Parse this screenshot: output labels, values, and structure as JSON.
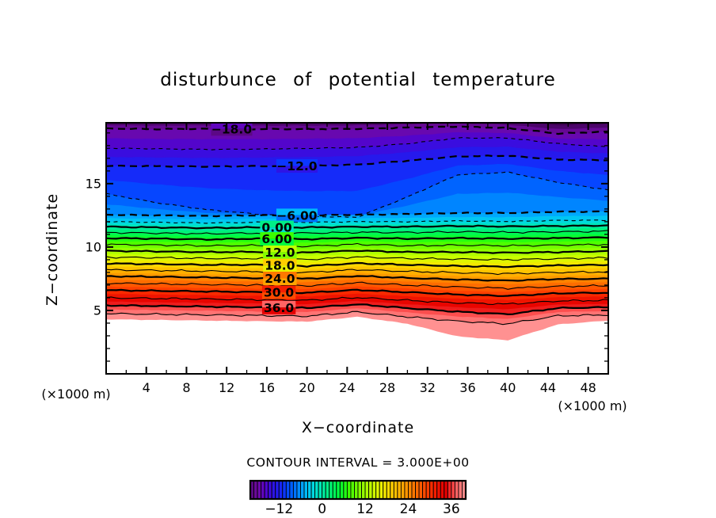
{
  "chart_data": {
    "type": "contour",
    "title": "disturbunce of potential temperature",
    "xlabel": "X−coordinate",
    "ylabel": "Z−coordinate",
    "x_unit_left": "(×1000 m)",
    "x_unit_right": "(×1000 m)",
    "contour_interval_label": "CONTOUR INTERVAL = 3.000E+00",
    "contour_interval": 3.0,
    "grid": false,
    "x_range": [
      0,
      50
    ],
    "z_range": [
      0,
      19.8
    ],
    "x_major_ticks": [
      4,
      8,
      12,
      16,
      20,
      24,
      28,
      32,
      36,
      40,
      44,
      48
    ],
    "x_minor_step": 2,
    "z_major_ticks": [
      5,
      10,
      15
    ],
    "z_minor_step": 1,
    "x_points": [
      0,
      5,
      10,
      15,
      20,
      25,
      30,
      35,
      40,
      45,
      50
    ],
    "fill_step": 1.5,
    "contour_levels": [
      {
        "value": -21,
        "line": false,
        "z": [
          19.88,
          19.85,
          19.87,
          19.85,
          19.85,
          19.87,
          19.95,
          20.0,
          19.9,
          19.6,
          19.7
        ]
      },
      {
        "value": -19.5,
        "line": false,
        "z": [
          19.62,
          19.58,
          19.6,
          19.58,
          19.58,
          19.6,
          19.68,
          19.75,
          19.65,
          19.3,
          19.42
        ]
      },
      {
        "value": -18,
        "line": true,
        "style": "dashed",
        "thick": true,
        "label": "−18.0",
        "label_x": 12.5,
        "z": [
          19.35,
          19.3,
          19.32,
          19.3,
          19.3,
          19.32,
          19.42,
          19.5,
          19.38,
          18.95,
          19.1
        ]
      },
      {
        "value": -15,
        "line": true,
        "style": "dashed",
        "thick": false,
        "label": null,
        "label_x": null,
        "z": [
          17.8,
          17.75,
          17.7,
          17.72,
          17.78,
          17.85,
          18.15,
          18.6,
          18.6,
          18.15,
          17.9
        ]
      },
      {
        "value": -12,
        "line": true,
        "style": "dashed",
        "thick": true,
        "label": "−12.0",
        "label_x": 19.0,
        "z": [
          16.4,
          16.38,
          16.35,
          16.38,
          16.4,
          16.5,
          16.8,
          17.15,
          17.2,
          16.9,
          16.85
        ]
      },
      {
        "value": -9,
        "line": true,
        "style": "dashed",
        "thick": false,
        "label": null,
        "label_x": null,
        "z": [
          14.2,
          13.5,
          12.95,
          12.6,
          12.42,
          12.35,
          13.95,
          15.7,
          15.9,
          15.1,
          14.5
        ]
      },
      {
        "value": -6,
        "line": true,
        "style": "dashed",
        "thick": true,
        "label": "−6.00",
        "label_x": 19.0,
        "z": [
          12.55,
          12.5,
          12.45,
          12.5,
          12.5,
          12.55,
          12.6,
          12.68,
          12.68,
          12.78,
          12.8
        ]
      },
      {
        "value": -3,
        "line": true,
        "style": "dashed",
        "thick": false,
        "label": null,
        "label_x": null,
        "z": [
          12.0,
          11.95,
          11.9,
          11.95,
          11.95,
          12.0,
          12.0,
          12.06,
          12.02,
          12.1,
          12.12
        ]
      },
      {
        "value": 0,
        "line": true,
        "style": "solid",
        "thick": true,
        "label": "0.00",
        "label_x": 17.0,
        "z": [
          11.6,
          11.55,
          11.5,
          11.55,
          11.55,
          11.6,
          11.6,
          11.66,
          11.62,
          11.66,
          11.7
        ]
      },
      {
        "value": 3,
        "line": true,
        "style": "solid",
        "thick": false,
        "label": null,
        "label_x": null,
        "z": [
          11.15,
          11.1,
          11.05,
          11.1,
          11.1,
          11.16,
          11.15,
          11.2,
          11.16,
          11.2,
          11.25
        ]
      },
      {
        "value": 6,
        "line": true,
        "style": "solid",
        "thick": true,
        "label": "6.00",
        "label_x": 17.0,
        "z": [
          10.7,
          10.66,
          10.6,
          10.66,
          10.62,
          10.72,
          10.66,
          10.7,
          10.66,
          10.7,
          10.76
        ]
      },
      {
        "value": 9,
        "line": true,
        "style": "solid",
        "thick": false,
        "label": null,
        "label_x": null,
        "z": [
          10.2,
          10.16,
          10.1,
          10.12,
          10.06,
          10.22,
          10.1,
          10.15,
          10.1,
          10.15,
          10.2
        ]
      },
      {
        "value": 12,
        "line": true,
        "style": "solid",
        "thick": true,
        "label": "12.0",
        "label_x": 17.3,
        "z": [
          9.7,
          9.66,
          9.6,
          9.62,
          9.56,
          9.72,
          9.6,
          9.6,
          9.55,
          9.6,
          9.68
        ]
      },
      {
        "value": 15,
        "line": true,
        "style": "solid",
        "thick": false,
        "label": null,
        "label_x": null,
        "z": [
          9.2,
          9.16,
          9.1,
          9.1,
          9.02,
          9.22,
          9.1,
          9.05,
          9.0,
          9.08,
          9.15
        ]
      },
      {
        "value": 18,
        "line": true,
        "style": "solid",
        "thick": true,
        "label": "18.0",
        "label_x": 17.3,
        "z": [
          8.7,
          8.66,
          8.6,
          8.6,
          8.5,
          8.72,
          8.6,
          8.5,
          8.45,
          8.55,
          8.6
        ]
      },
      {
        "value": 21,
        "line": true,
        "style": "solid",
        "thick": false,
        "label": null,
        "label_x": null,
        "z": [
          8.2,
          8.16,
          8.1,
          8.06,
          8.0,
          8.22,
          8.08,
          7.98,
          7.9,
          8.0,
          8.05
        ]
      },
      {
        "value": 24,
        "line": true,
        "style": "solid",
        "thick": true,
        "label": "24.0",
        "label_x": 17.3,
        "z": [
          7.7,
          7.66,
          7.6,
          7.55,
          7.5,
          7.72,
          7.56,
          7.44,
          7.35,
          7.48,
          7.5
        ]
      },
      {
        "value": 27,
        "line": true,
        "style": "solid",
        "thick": false,
        "label": null,
        "label_x": null,
        "z": [
          7.15,
          7.1,
          7.05,
          7.0,
          6.95,
          7.18,
          7.0,
          6.85,
          6.75,
          6.9,
          6.95
        ]
      },
      {
        "value": 30,
        "line": true,
        "style": "solid",
        "thick": true,
        "label": "30.0",
        "label_x": 17.2,
        "z": [
          6.6,
          6.55,
          6.5,
          6.45,
          6.4,
          6.62,
          6.44,
          6.25,
          6.15,
          6.35,
          6.4
        ]
      },
      {
        "value": 33,
        "line": true,
        "style": "solid",
        "thick": false,
        "label": null,
        "label_x": null,
        "z": [
          6.0,
          5.95,
          5.9,
          5.85,
          5.8,
          6.02,
          5.8,
          5.6,
          5.5,
          5.75,
          5.8
        ]
      },
      {
        "value": 36,
        "line": true,
        "style": "solid",
        "thick": true,
        "label": "36.0",
        "label_x": 17.2,
        "z": [
          5.4,
          5.35,
          5.3,
          5.25,
          5.2,
          5.48,
          5.18,
          4.9,
          4.7,
          5.18,
          5.25
        ]
      },
      {
        "value": 39,
        "line": true,
        "style": "solid",
        "thick": false,
        "label": null,
        "label_x": null,
        "z": [
          4.75,
          4.7,
          4.65,
          4.6,
          4.55,
          4.88,
          4.5,
          4.15,
          3.95,
          4.58,
          4.65
        ]
      },
      {
        "value": 41,
        "line": false,
        "data_bottom": true,
        "z": [
          4.3,
          4.25,
          4.2,
          4.15,
          4.12,
          4.5,
          3.95,
          2.95,
          2.65,
          3.9,
          4.2
        ]
      }
    ],
    "colorbar": {
      "range": [
        -20,
        40
      ],
      "cell_step": 1,
      "ticks": [
        -12,
        0,
        12,
        24,
        36
      ],
      "tick_labels": [
        "−12",
        "0",
        "12",
        "24",
        "36"
      ]
    },
    "colormap_stops": [
      [
        -21,
        "#3c0050"
      ],
      [
        -19.5,
        "#5c0886"
      ],
      [
        -18,
        "#700aa0"
      ],
      [
        -16.5,
        "#6005be"
      ],
      [
        -15,
        "#4605d7"
      ],
      [
        -13.5,
        "#2d14e6"
      ],
      [
        -12,
        "#1e1ef2"
      ],
      [
        -10.5,
        "#0c37ff"
      ],
      [
        -9,
        "#0055ff"
      ],
      [
        -7.5,
        "#0073ff"
      ],
      [
        -6,
        "#0096ff"
      ],
      [
        -4.5,
        "#00b9fa"
      ],
      [
        -3,
        "#00d2eb"
      ],
      [
        -1.5,
        "#00e1cd"
      ],
      [
        0,
        "#00e8aa"
      ],
      [
        1.5,
        "#00ee87"
      ],
      [
        3,
        "#00f564"
      ],
      [
        4.5,
        "#00fa41"
      ],
      [
        6,
        "#14fd1e"
      ],
      [
        7.5,
        "#3cff00"
      ],
      [
        9,
        "#5fff00"
      ],
      [
        10.5,
        "#82ff00"
      ],
      [
        12,
        "#a0ff00"
      ],
      [
        13.5,
        "#beff00"
      ],
      [
        15,
        "#d7fa00"
      ],
      [
        16.5,
        "#ebf000"
      ],
      [
        18,
        "#f8e100"
      ],
      [
        19.5,
        "#ffcd00"
      ],
      [
        21,
        "#ffb900"
      ],
      [
        22.5,
        "#ffa500"
      ],
      [
        24,
        "#ff8e00"
      ],
      [
        25.5,
        "#ff7800"
      ],
      [
        27,
        "#ff6200"
      ],
      [
        28.5,
        "#ff4b00"
      ],
      [
        30,
        "#fc3400"
      ],
      [
        31.5,
        "#f51e00"
      ],
      [
        33,
        "#eb0a00"
      ],
      [
        34.5,
        "#e40000"
      ],
      [
        36,
        "#f83737"
      ],
      [
        37.5,
        "#ff6464"
      ],
      [
        39,
        "#ff8282"
      ],
      [
        40.5,
        "#ffa0a0"
      ]
    ]
  }
}
